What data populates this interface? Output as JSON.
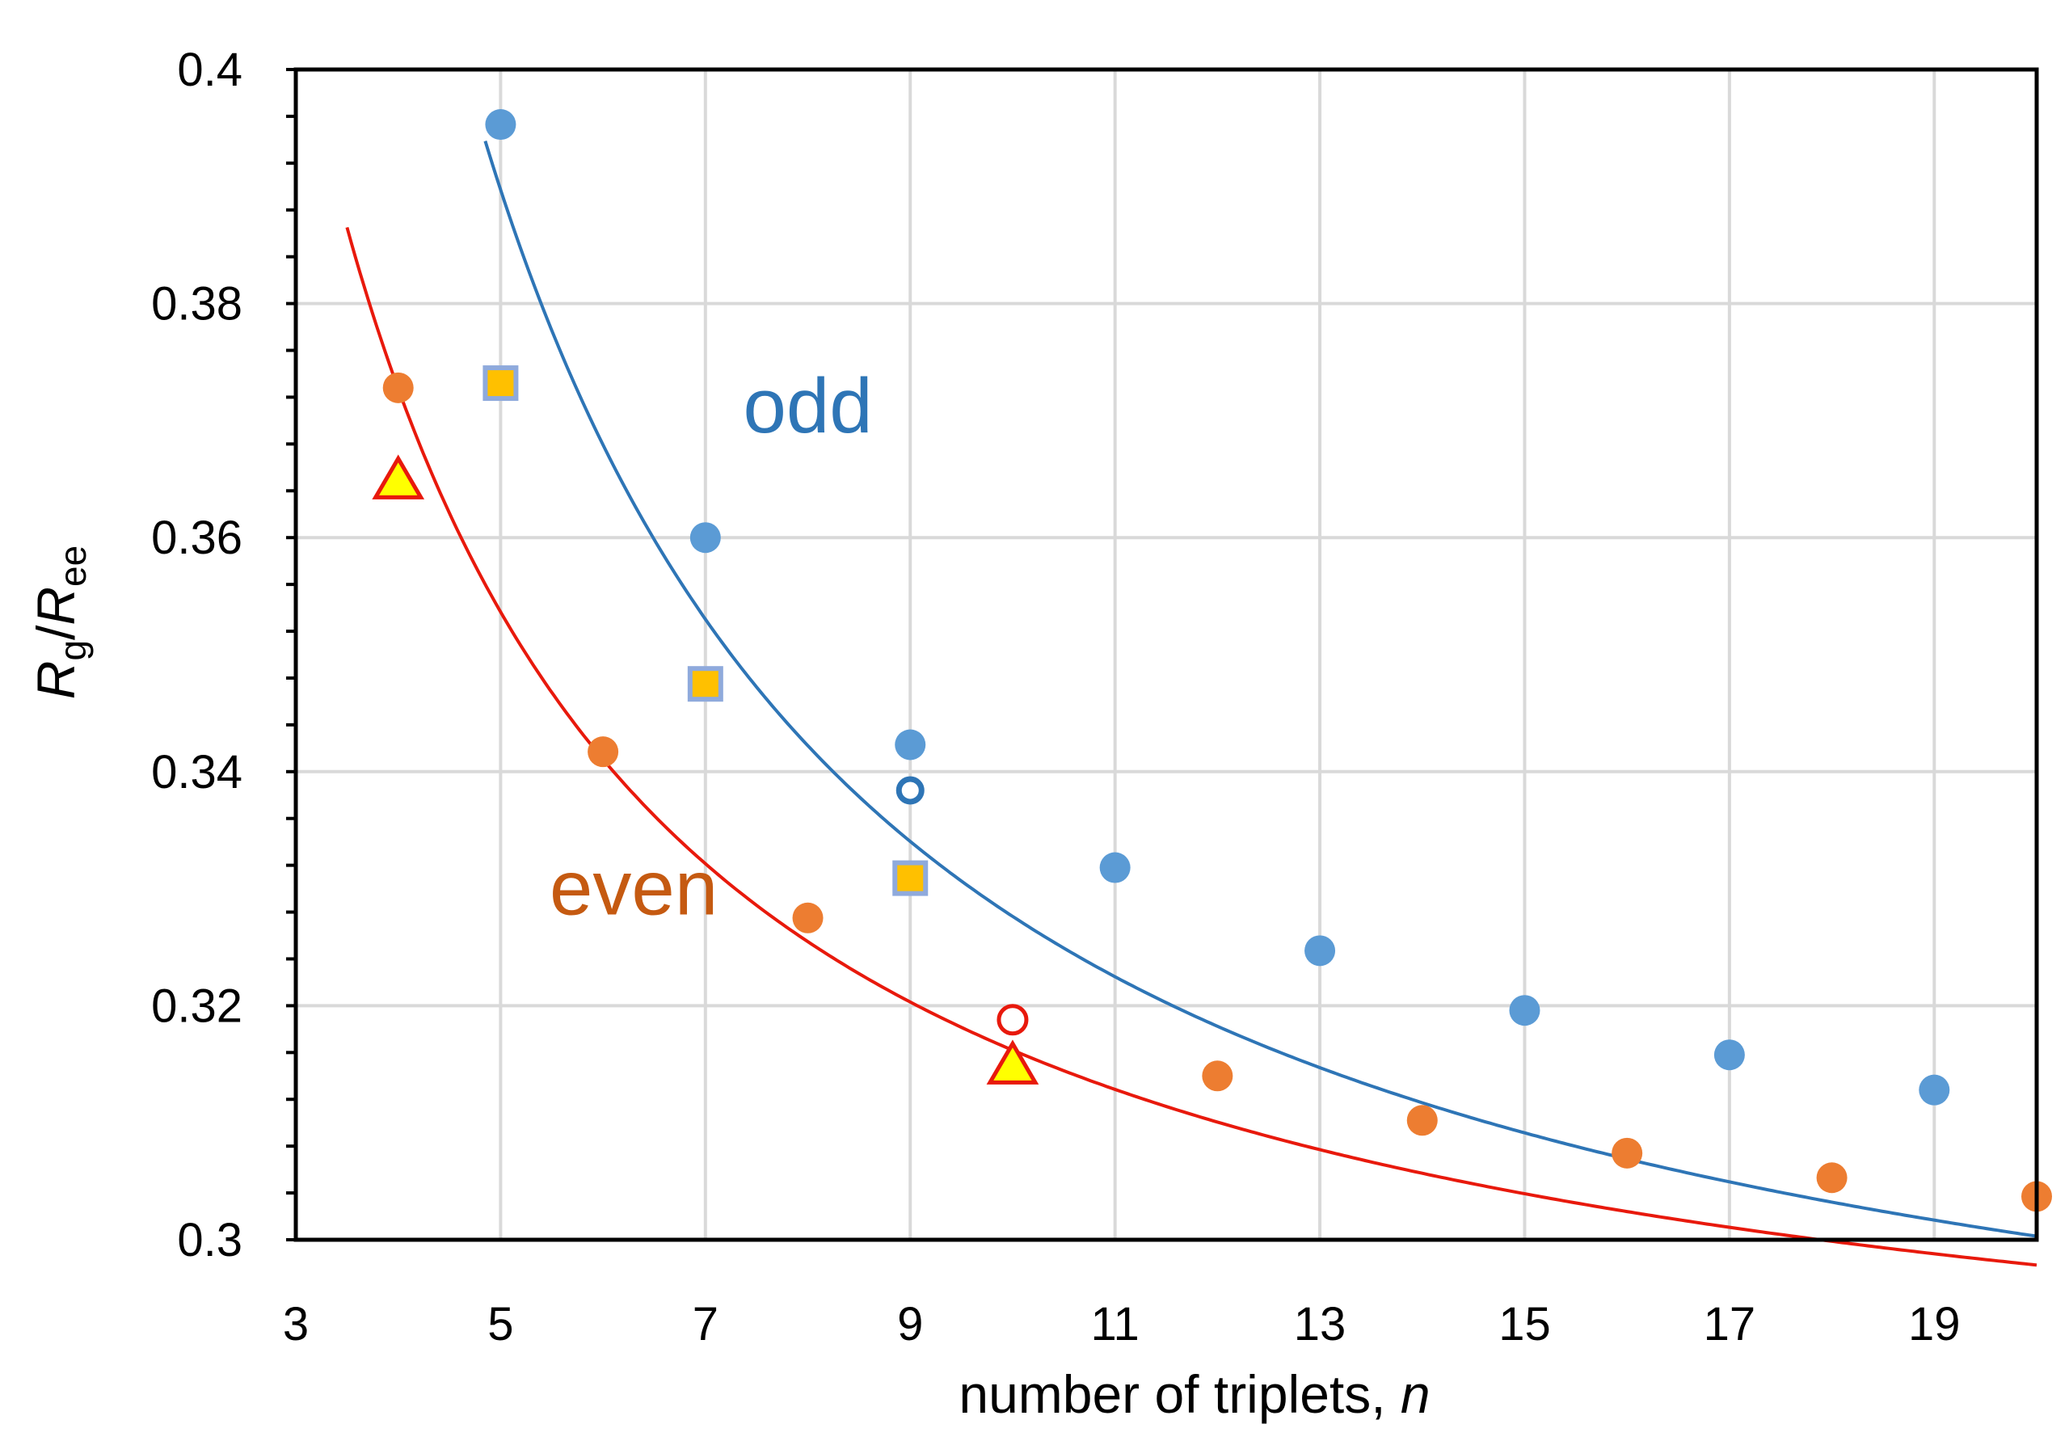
{
  "chart_data": {
    "type": "scatter",
    "xlabel": {
      "text": "number of triplets, ",
      "italic": "n"
    },
    "ylabel": {
      "R": "R",
      "sub_g": "g",
      "slash": "/",
      "R2": "R",
      "sub_ee": "ee"
    },
    "xlim": [
      3,
      20
    ],
    "ylim": [
      0.3,
      0.4
    ],
    "xticks": [
      3,
      5,
      7,
      9,
      11,
      13,
      15,
      17,
      19
    ],
    "xtick_labels": [
      "3",
      "5",
      "7",
      "9",
      "11",
      "13",
      "15",
      "17",
      "19"
    ],
    "yticks": [
      0.3,
      0.32,
      0.34,
      0.36,
      0.38,
      0.4
    ],
    "ytick_labels": [
      "0.3",
      "0.32",
      "0.34",
      "0.36",
      "0.38",
      "0.4"
    ],
    "grid": true,
    "colors": {
      "odd": "#5b9bd5",
      "odd_curve": "#2e75b6",
      "even": "#ed7d31",
      "even_curve": "#e8190c",
      "square_fill": "#ffc000",
      "square_edge": "#8faadc",
      "triangle_fill": "#ffff00",
      "triangle_edge": "#e8190c"
    },
    "series": [
      {
        "name": "odd",
        "marker": "circle",
        "points": [
          {
            "x": 5,
            "y": 0.3953
          },
          {
            "x": 7,
            "y": 0.36
          },
          {
            "x": 9,
            "y": 0.3423
          },
          {
            "x": 11,
            "y": 0.3318
          },
          {
            "x": 13,
            "y": 0.3247
          },
          {
            "x": 15,
            "y": 0.3196
          },
          {
            "x": 17,
            "y": 0.3158
          },
          {
            "x": 19,
            "y": 0.3128
          }
        ]
      },
      {
        "name": "even",
        "marker": "circle",
        "points": [
          {
            "x": 4,
            "y": 0.3728
          },
          {
            "x": 6,
            "y": 0.3417
          },
          {
            "x": 8,
            "y": 0.3275
          },
          {
            "x": 12,
            "y": 0.314
          },
          {
            "x": 14,
            "y": 0.3102
          },
          {
            "x": 16,
            "y": 0.3074
          },
          {
            "x": 18,
            "y": 0.3053
          },
          {
            "x": 20,
            "y": 0.3037
          }
        ]
      },
      {
        "marker": "open-circle-odd",
        "points": [
          {
            "x": 9,
            "y": 0.3384
          }
        ]
      },
      {
        "marker": "open-circle-even",
        "points": [
          {
            "x": 10,
            "y": 0.3188
          }
        ]
      },
      {
        "marker": "square",
        "points": [
          {
            "x": 5,
            "y": 0.3732
          },
          {
            "x": 7,
            "y": 0.3475
          },
          {
            "x": 9,
            "y": 0.3309
          }
        ]
      },
      {
        "marker": "triangle",
        "points": [
          {
            "x": 4,
            "y": 0.3647
          },
          {
            "x": 10,
            "y": 0.3147
          }
        ]
      }
    ],
    "curves": [
      {
        "series": "odd",
        "x_range": [
          4.85,
          20
        ],
        "model": "a + b/x + c/x^2",
        "coefficients": [
          0.27545,
          0.47223,
          0.49565
        ]
      },
      {
        "series": "even",
        "x_range": [
          3.5,
          20
        ],
        "model": "a + b/x + c/x^2",
        "coefficients": [
          0.27972,
          0.36002,
          0.04806
        ]
      }
    ],
    "annotations": [
      {
        "text": "odd",
        "x": 8.0,
        "y": 0.369,
        "color": "#2e75b6"
      },
      {
        "text": "even",
        "x": 6.3,
        "y": 0.3278,
        "color": "#c55a11"
      }
    ]
  }
}
